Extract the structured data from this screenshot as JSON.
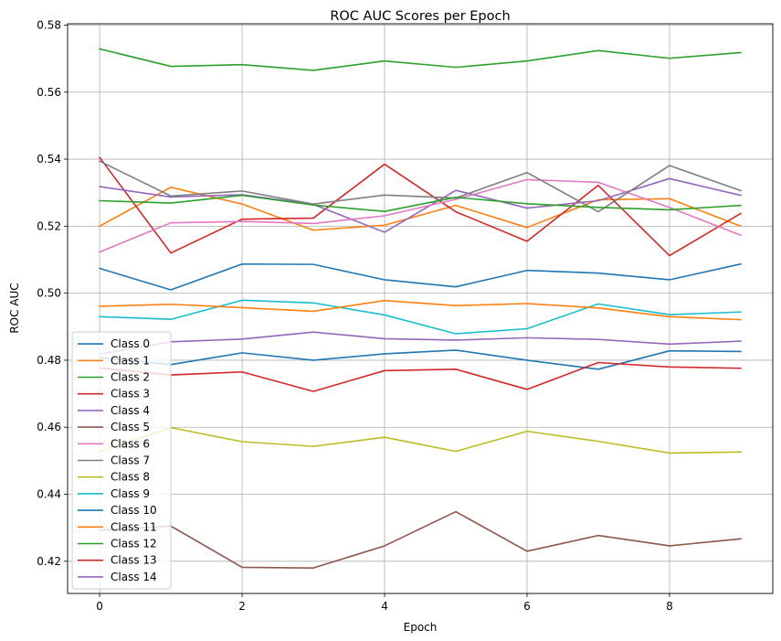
{
  "chart_data": {
    "type": "line",
    "title": "ROC AUC Scores per Epoch",
    "xlabel": "Epoch",
    "ylabel": "ROC AUC",
    "xlim": [
      -0.45,
      9.45
    ],
    "ylim": [
      0.4104,
      0.5804
    ],
    "xticks": [
      0,
      2,
      4,
      6,
      8
    ],
    "yticks": [
      0.42,
      0.44,
      0.46,
      0.48,
      0.5,
      0.52,
      0.54,
      0.56,
      0.58
    ],
    "grid": true,
    "legend_position": "bottom-left",
    "x": [
      0,
      1,
      2,
      3,
      4,
      5,
      6,
      7,
      8,
      9
    ],
    "series": [
      {
        "name": "Class 0",
        "color": "#1f77b4",
        "values": [
          0.5074,
          0.501,
          0.5087,
          0.5086,
          0.504,
          0.5019,
          0.5068,
          0.506,
          0.504,
          0.5087
        ]
      },
      {
        "name": "Class 1",
        "color": "#ff7f0e",
        "values": [
          0.52,
          0.5316,
          0.5266,
          0.5188,
          0.5203,
          0.5262,
          0.5196,
          0.5279,
          0.5282,
          0.52
        ]
      },
      {
        "name": "Class 2",
        "color": "#2ca02c",
        "values": [
          0.5729,
          0.5677,
          0.5682,
          0.5665,
          0.5693,
          0.5674,
          0.5693,
          0.5724,
          0.5701,
          0.5718
        ]
      },
      {
        "name": "Class 3",
        "color": "#d62728",
        "values": [
          0.5405,
          0.512,
          0.5221,
          0.5224,
          0.5385,
          0.5243,
          0.5155,
          0.5322,
          0.5112,
          0.5238
        ]
      },
      {
        "name": "Class 4",
        "color": "#9467bd",
        "values": [
          0.5318,
          0.5287,
          0.5294,
          0.5265,
          0.5182,
          0.5307,
          0.5254,
          0.5276,
          0.5342,
          0.5292
        ]
      },
      {
        "name": "Class 5",
        "color": "#8c564b",
        "values": [
          0.4293,
          0.4305,
          0.4182,
          0.418,
          0.4246,
          0.4348,
          0.423,
          0.4277,
          0.4246,
          0.4267
        ]
      },
      {
        "name": "Class 6",
        "color": "#e377c2",
        "values": [
          0.5123,
          0.521,
          0.5214,
          0.5208,
          0.5231,
          0.528,
          0.5339,
          0.5331,
          0.5256,
          0.5173
        ]
      },
      {
        "name": "Class 7",
        "color": "#7f7f7f",
        "values": [
          0.5394,
          0.529,
          0.5305,
          0.5266,
          0.5293,
          0.5284,
          0.536,
          0.5243,
          0.5381,
          0.5306
        ]
      },
      {
        "name": "Class 8",
        "color": "#bcbd22",
        "values": [
          0.4527,
          0.4599,
          0.4557,
          0.4543,
          0.457,
          0.4528,
          0.4588,
          0.4558,
          0.4523,
          0.4526
        ]
      },
      {
        "name": "Class 9",
        "color": "#17becf",
        "values": [
          0.493,
          0.4922,
          0.4979,
          0.4971,
          0.4935,
          0.4879,
          0.4894,
          0.4968,
          0.4936,
          0.4944
        ]
      },
      {
        "name": "Class 10",
        "color": "#1f77b4",
        "values": [
          0.4808,
          0.4787,
          0.4822,
          0.48,
          0.4819,
          0.483,
          0.48,
          0.4773,
          0.4828,
          0.4826
        ]
      },
      {
        "name": "Class 11",
        "color": "#ff7f0e",
        "values": [
          0.4961,
          0.4967,
          0.4957,
          0.4946,
          0.4978,
          0.4963,
          0.4969,
          0.4956,
          0.493,
          0.4921
        ]
      },
      {
        "name": "Class 12",
        "color": "#2ca02c",
        "values": [
          0.5276,
          0.5269,
          0.5292,
          0.5263,
          0.5244,
          0.5286,
          0.5267,
          0.5256,
          0.5249,
          0.5262
        ]
      },
      {
        "name": "Class 13",
        "color": "#d62728",
        "values": [
          0.4777,
          0.4756,
          0.4765,
          0.4707,
          0.4769,
          0.4773,
          0.4713,
          0.4793,
          0.478,
          0.4776
        ]
      },
      {
        "name": "Class 14",
        "color": "#9467bd",
        "values": [
          0.4818,
          0.4855,
          0.4863,
          0.4884,
          0.4864,
          0.486,
          0.4867,
          0.4862,
          0.4848,
          0.4857
        ]
      }
    ]
  }
}
